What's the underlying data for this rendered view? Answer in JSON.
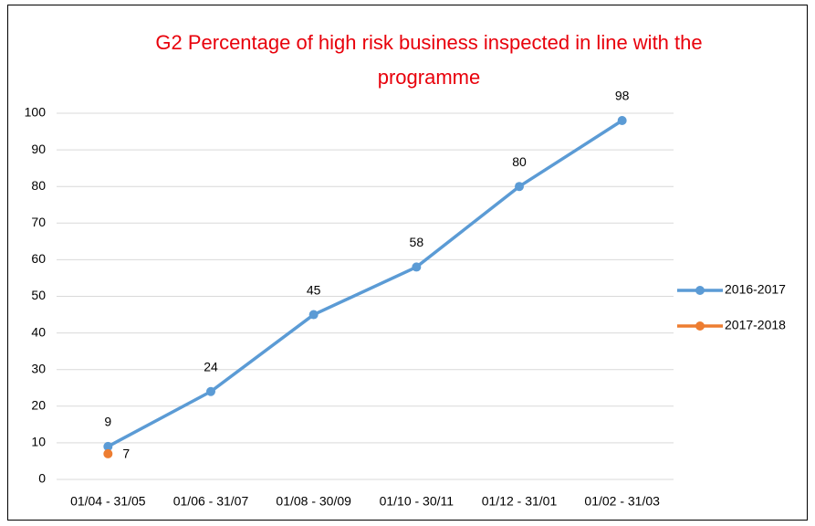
{
  "chart_data": {
    "type": "line",
    "title": "G2 Percentage of high risk business inspected in line with the programme",
    "categories": [
      "01/04 - 31/05",
      "01/06 - 31/07",
      "01/08 - 30/09",
      "01/10 - 30/11",
      "01/12 - 31/01",
      "01/02 - 31/03"
    ],
    "series": [
      {
        "name": "2016-2017",
        "color": "#5b9bd5",
        "values": [
          9,
          24,
          45,
          58,
          80,
          98
        ]
      },
      {
        "name": "2017-2018",
        "color": "#ed7d31",
        "values": [
          7,
          null,
          null,
          null,
          null,
          null
        ]
      }
    ],
    "ylim": [
      0,
      100
    ],
    "yticks": [
      0,
      10,
      20,
      30,
      40,
      50,
      60,
      70,
      80,
      90,
      100
    ],
    "grid": true,
    "legend": "right"
  }
}
